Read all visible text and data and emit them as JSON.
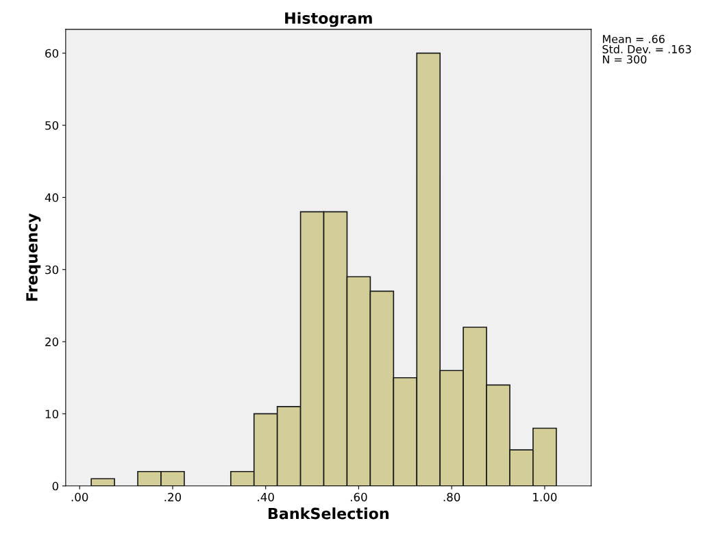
{
  "chart_data": {
    "type": "histogram",
    "title": "Histogram",
    "xlabel": "BankSelection",
    "ylabel": "Frequency",
    "bins": [
      0.025,
      0.075,
      0.125,
      0.175,
      0.225,
      0.275,
      0.325,
      0.375,
      0.425,
      0.475,
      0.525,
      0.575,
      0.625,
      0.675,
      0.725,
      0.775,
      0.825,
      0.875,
      0.925,
      0.975,
      1.025
    ],
    "values": [
      1,
      0,
      2,
      2,
      0,
      0,
      2,
      10,
      11,
      38,
      38,
      29,
      27,
      15,
      60,
      16,
      22,
      14,
      5,
      8
    ],
    "color": "#d3ce97",
    "xlim": [
      -0.03,
      1.1
    ],
    "xticks": [
      {
        "value": 0,
        "label": ".00"
      },
      {
        "value": 0.2,
        "label": ".20"
      },
      {
        "value": 0.4,
        "label": ".40"
      },
      {
        "value": 0.6,
        "label": ".60"
      },
      {
        "value": 0.8,
        "label": ".80"
      },
      {
        "value": 1.0,
        "label": "1.00"
      }
    ],
    "ylim": [
      0,
      63.3
    ],
    "yticks": [
      0,
      10,
      20,
      30,
      40,
      50,
      60
    ],
    "grid": false,
    "annotations": [
      "Mean = .66\nStd. Dev. = .163\nN = 300"
    ]
  }
}
